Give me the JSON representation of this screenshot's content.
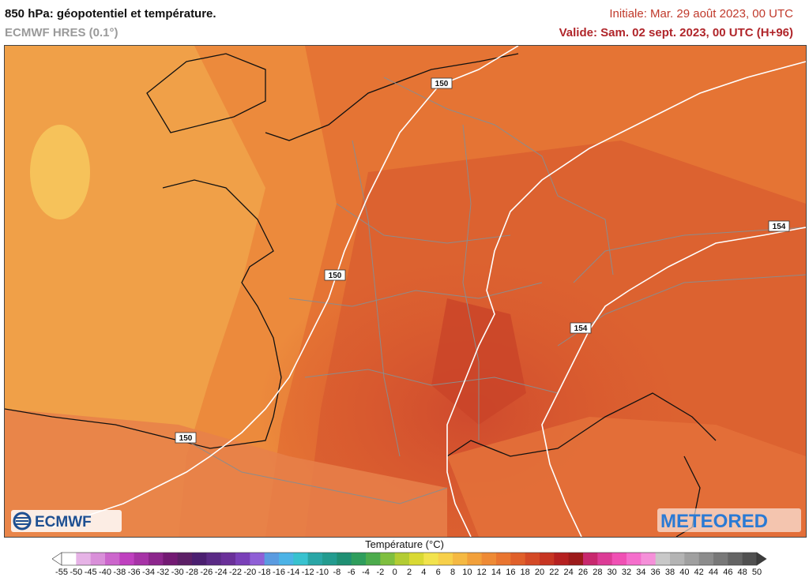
{
  "header": {
    "title": "850 hPa: géopotentiel et température.",
    "model": "ECMWF HRES (0.1°)",
    "initial": "Initiale: Mar. 29 août 2023, 00 UTC",
    "valid": "Valide: Sam. 02 sept. 2023, 00 UTC (H+96)"
  },
  "map": {
    "contour_labels": [
      "150",
      "150",
      "150",
      "154",
      "154"
    ]
  },
  "logos": {
    "left": "ECMWF",
    "right": "METEORED"
  },
  "legend": {
    "title": "Température (°C)",
    "ticks": [
      "-55",
      "-50",
      "-45",
      "-40",
      "-38",
      "-36",
      "-34",
      "-32",
      "-30",
      "-28",
      "-26",
      "-24",
      "-22",
      "-20",
      "-18",
      "-16",
      "-14",
      "-12",
      "-10",
      "-8",
      "-6",
      "-4",
      "-2",
      "0",
      "2",
      "4",
      "6",
      "8",
      "10",
      "12",
      "14",
      "16",
      "18",
      "20",
      "22",
      "24",
      "26",
      "28",
      "30",
      "32",
      "34",
      "36",
      "38",
      "40",
      "42",
      "44",
      "46",
      "48",
      "50"
    ],
    "colors": [
      "#ffffff",
      "#e6b3e6",
      "#d98fd9",
      "#cc66cc",
      "#bf40bf",
      "#a633a6",
      "#8c268c",
      "#731a73",
      "#5c1f66",
      "#4b1f70",
      "#5a2a85",
      "#6a3099",
      "#7a40b8",
      "#8f5fd6",
      "#5a9be0",
      "#4cb3e6",
      "#38c2cf",
      "#2aa6a6",
      "#239b8f",
      "#1f8f73",
      "#2e9d5c",
      "#4cab4c",
      "#7fbf3f",
      "#b3cc33",
      "#d9d933",
      "#f2e34d",
      "#f7d04a",
      "#f5b942",
      "#f2a03a",
      "#ee8a35",
      "#e97530",
      "#e0602a",
      "#d44a26",
      "#c73522",
      "#b52020",
      "#9c1a1a",
      "#c8286e",
      "#dc3c96",
      "#f050b4",
      "#f56ecc",
      "#f590d9",
      "#c8c8c8",
      "#b4b4b4",
      "#a0a0a0",
      "#8c8c8c",
      "#787878",
      "#646464",
      "#505050"
    ]
  }
}
